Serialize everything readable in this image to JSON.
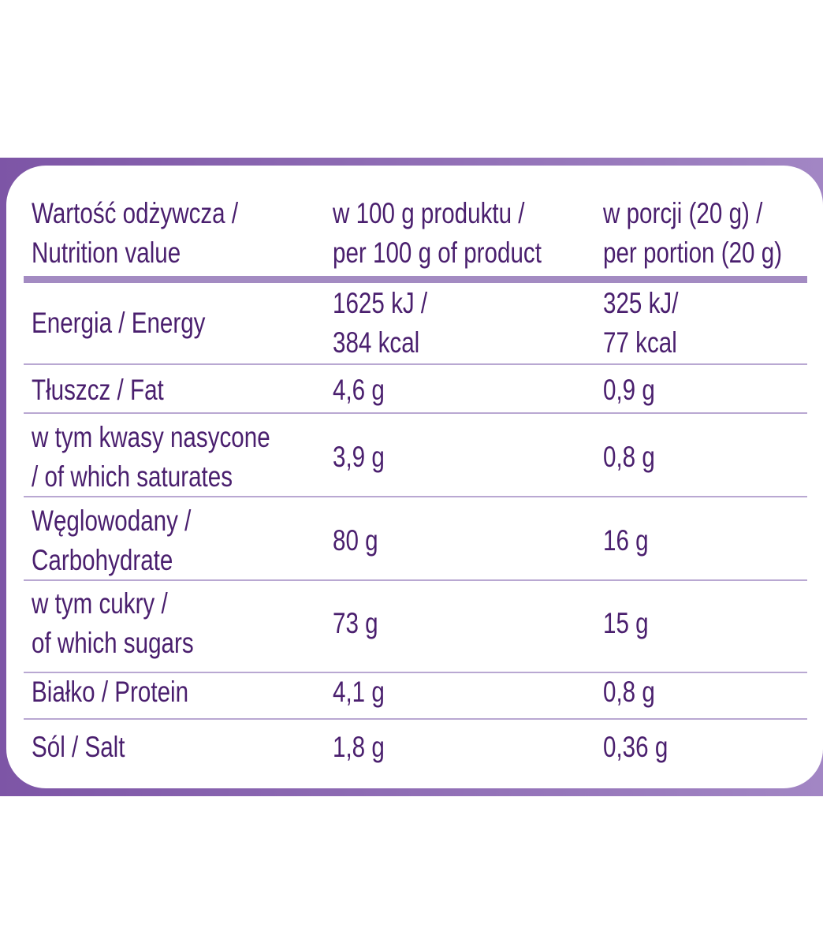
{
  "table": {
    "header": [
      [
        "Wartość odżywcza /",
        "Nutrition value"
      ],
      [
        "w 100 g produktu /",
        "per 100 g of product"
      ],
      [
        "w porcji (20 g) /",
        "per portion (20 g)"
      ]
    ],
    "rows": [
      [
        [
          "Energia / Energy"
        ],
        [
          "1625 kJ /",
          "384 kcal"
        ],
        [
          "325 kJ/",
          "77 kcal"
        ]
      ],
      [
        [
          "Tłuszcz / Fat"
        ],
        [
          "4,6 g"
        ],
        [
          "0,9 g"
        ]
      ],
      [
        [
          "w tym kwasy nasycone",
          "/ of which saturates"
        ],
        [
          "3,9 g"
        ],
        [
          "0,8 g"
        ]
      ],
      [
        [
          "Węglowodany /",
          "Carbohydrate"
        ],
        [
          "80 g"
        ],
        [
          "16 g"
        ]
      ],
      [
        [
          "w tym cukry /",
          "of which sugars"
        ],
        [
          "73 g"
        ],
        [
          "15 g"
        ]
      ],
      [
        [
          "Białko / Protein"
        ],
        [
          "4,1 g"
        ],
        [
          "0,8 g"
        ]
      ],
      [
        [
          "Sól / Salt"
        ],
        [
          "1,8 g"
        ],
        [
          "0,36 g"
        ]
      ]
    ]
  }
}
